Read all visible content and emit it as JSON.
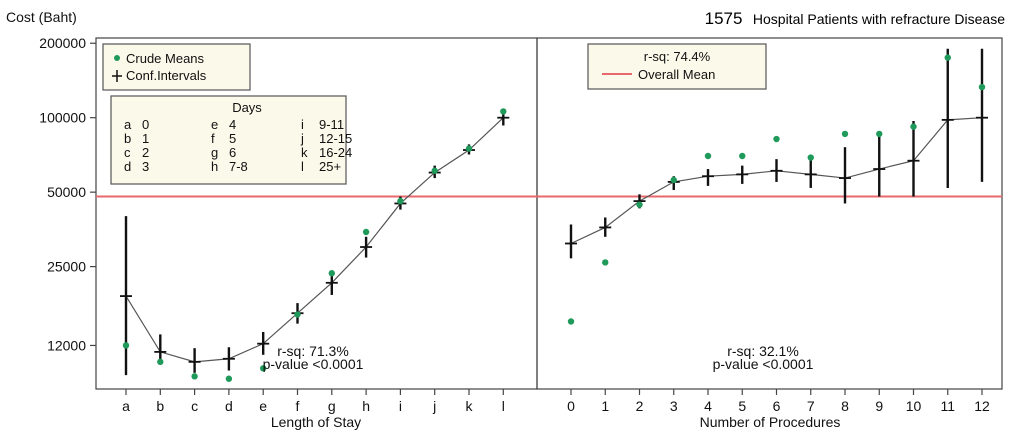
{
  "header": {
    "ylabel": "Cost (Baht)",
    "count": "1575",
    "subtitle": "Hospital Patients with refracture Disease"
  },
  "colors": {
    "crude": "#1f9a5a",
    "line": "#222222",
    "overall_mean": "#e9686e",
    "box_fill": "#fbf9ea"
  },
  "chart_data": [
    {
      "type": "line",
      "xlabel": "Length of Stay",
      "categories": [
        "a",
        "b",
        "c",
        "d",
        "e",
        "f",
        "g",
        "h",
        "i",
        "j",
        "k",
        "l"
      ],
      "y_scale": "log",
      "y_ticks": [
        12000,
        25000,
        50000,
        100000,
        200000
      ],
      "ylim": [
        8000,
        210000
      ],
      "overall_mean": 48000,
      "series": [
        {
          "name": "Crude Means",
          "values": [
            12000,
            10300,
            9000,
            8800,
            9700,
            16000,
            23500,
            34500,
            46000,
            61000,
            75000,
            106000
          ]
        },
        {
          "name": "Conf.Intervals",
          "mean": [
            19000,
            11300,
            10300,
            10600,
            12200,
            16200,
            21500,
            30000,
            45000,
            60000,
            74000,
            100000
          ],
          "lower": [
            9100,
            10100,
            9300,
            9500,
            11000,
            14700,
            19200,
            27200,
            42500,
            57000,
            71000,
            93000
          ],
          "upper": [
            40000,
            13300,
            11700,
            11800,
            13600,
            17800,
            23800,
            33000,
            48000,
            64000,
            78000,
            106000
          ]
        }
      ],
      "annotation": {
        "rsq": "r-sq: 71.3%",
        "pvalue": "p-value <0.0001"
      }
    },
    {
      "type": "line",
      "xlabel": "Number of Procedures",
      "categories": [
        "0",
        "1",
        "2",
        "3",
        "4",
        "5",
        "6",
        "7",
        "8",
        "9",
        "10",
        "11",
        "12"
      ],
      "y_scale": "log",
      "overall_mean": 48000,
      "series": [
        {
          "name": "Crude Means",
          "values": [
            15000,
            26000,
            44500,
            56000,
            70000,
            70000,
            82000,
            69000,
            86000,
            86000,
            92000,
            175000,
            133000
          ]
        },
        {
          "name": "Conf.Intervals",
          "mean": [
            31000,
            36000,
            46000,
            55000,
            58000,
            59000,
            61000,
            59000,
            57000,
            62000,
            67000,
            98000,
            100000
          ],
          "lower": [
            27000,
            33000,
            43000,
            51000,
            53000,
            54000,
            55000,
            52000,
            45000,
            48000,
            48000,
            52000,
            55000
          ],
          "upper": [
            37000,
            39500,
            49000,
            58000,
            62000,
            64000,
            68000,
            68000,
            76000,
            84000,
            97000,
            190000,
            190000
          ]
        }
      ],
      "annotation": {
        "rsq": "r-sq: 32.1%",
        "pvalue": "p-value <0.0001"
      }
    }
  ],
  "legend": {
    "crude_means": "Crude Means",
    "conf_intervals": "Conf.Intervals",
    "rsq_total": "r-sq: 74.4%",
    "overall_mean": "Overall Mean"
  },
  "days_table": {
    "title": "Days",
    "rows": [
      [
        "a",
        "0",
        "e",
        "4",
        "i",
        "9-11"
      ],
      [
        "b",
        "1",
        "f",
        "5",
        "j",
        "12-15"
      ],
      [
        "c",
        "2",
        "g",
        "6",
        "k",
        "16-24"
      ],
      [
        "d",
        "3",
        "h",
        "7-8",
        "l",
        "25+"
      ]
    ]
  }
}
